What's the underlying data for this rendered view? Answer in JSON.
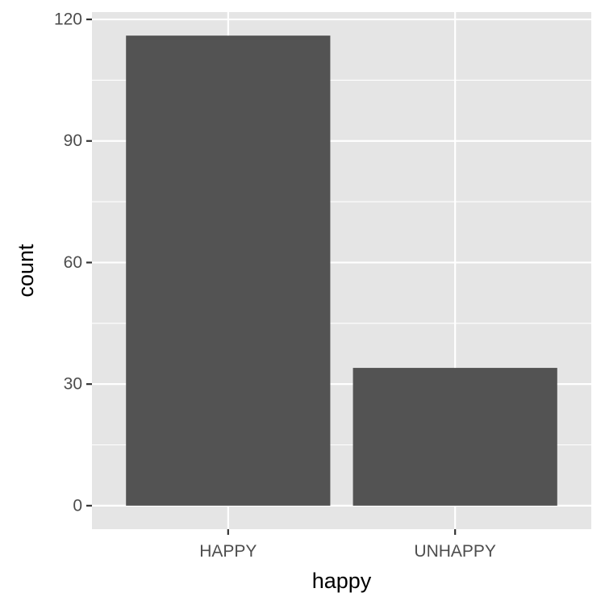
{
  "chart_data": {
    "type": "bar",
    "categories": [
      "HAPPY",
      "UNHAPPY"
    ],
    "values": [
      116,
      34
    ],
    "title": "",
    "xlabel": "happy",
    "ylabel": "count",
    "ylim": [
      -5.8,
      121.8
    ],
    "yticks": [
      0,
      30,
      60,
      90,
      120
    ],
    "yticks_minor": [
      15,
      45,
      75,
      105
    ],
    "grid": true,
    "colors": {
      "panel_background": "#e5e5e5",
      "grid": "#ffffff",
      "bar_fill": "#535353",
      "tick_text": "#4d4d4d",
      "tick_mark": "#333333",
      "axis_title": "#000000"
    }
  }
}
